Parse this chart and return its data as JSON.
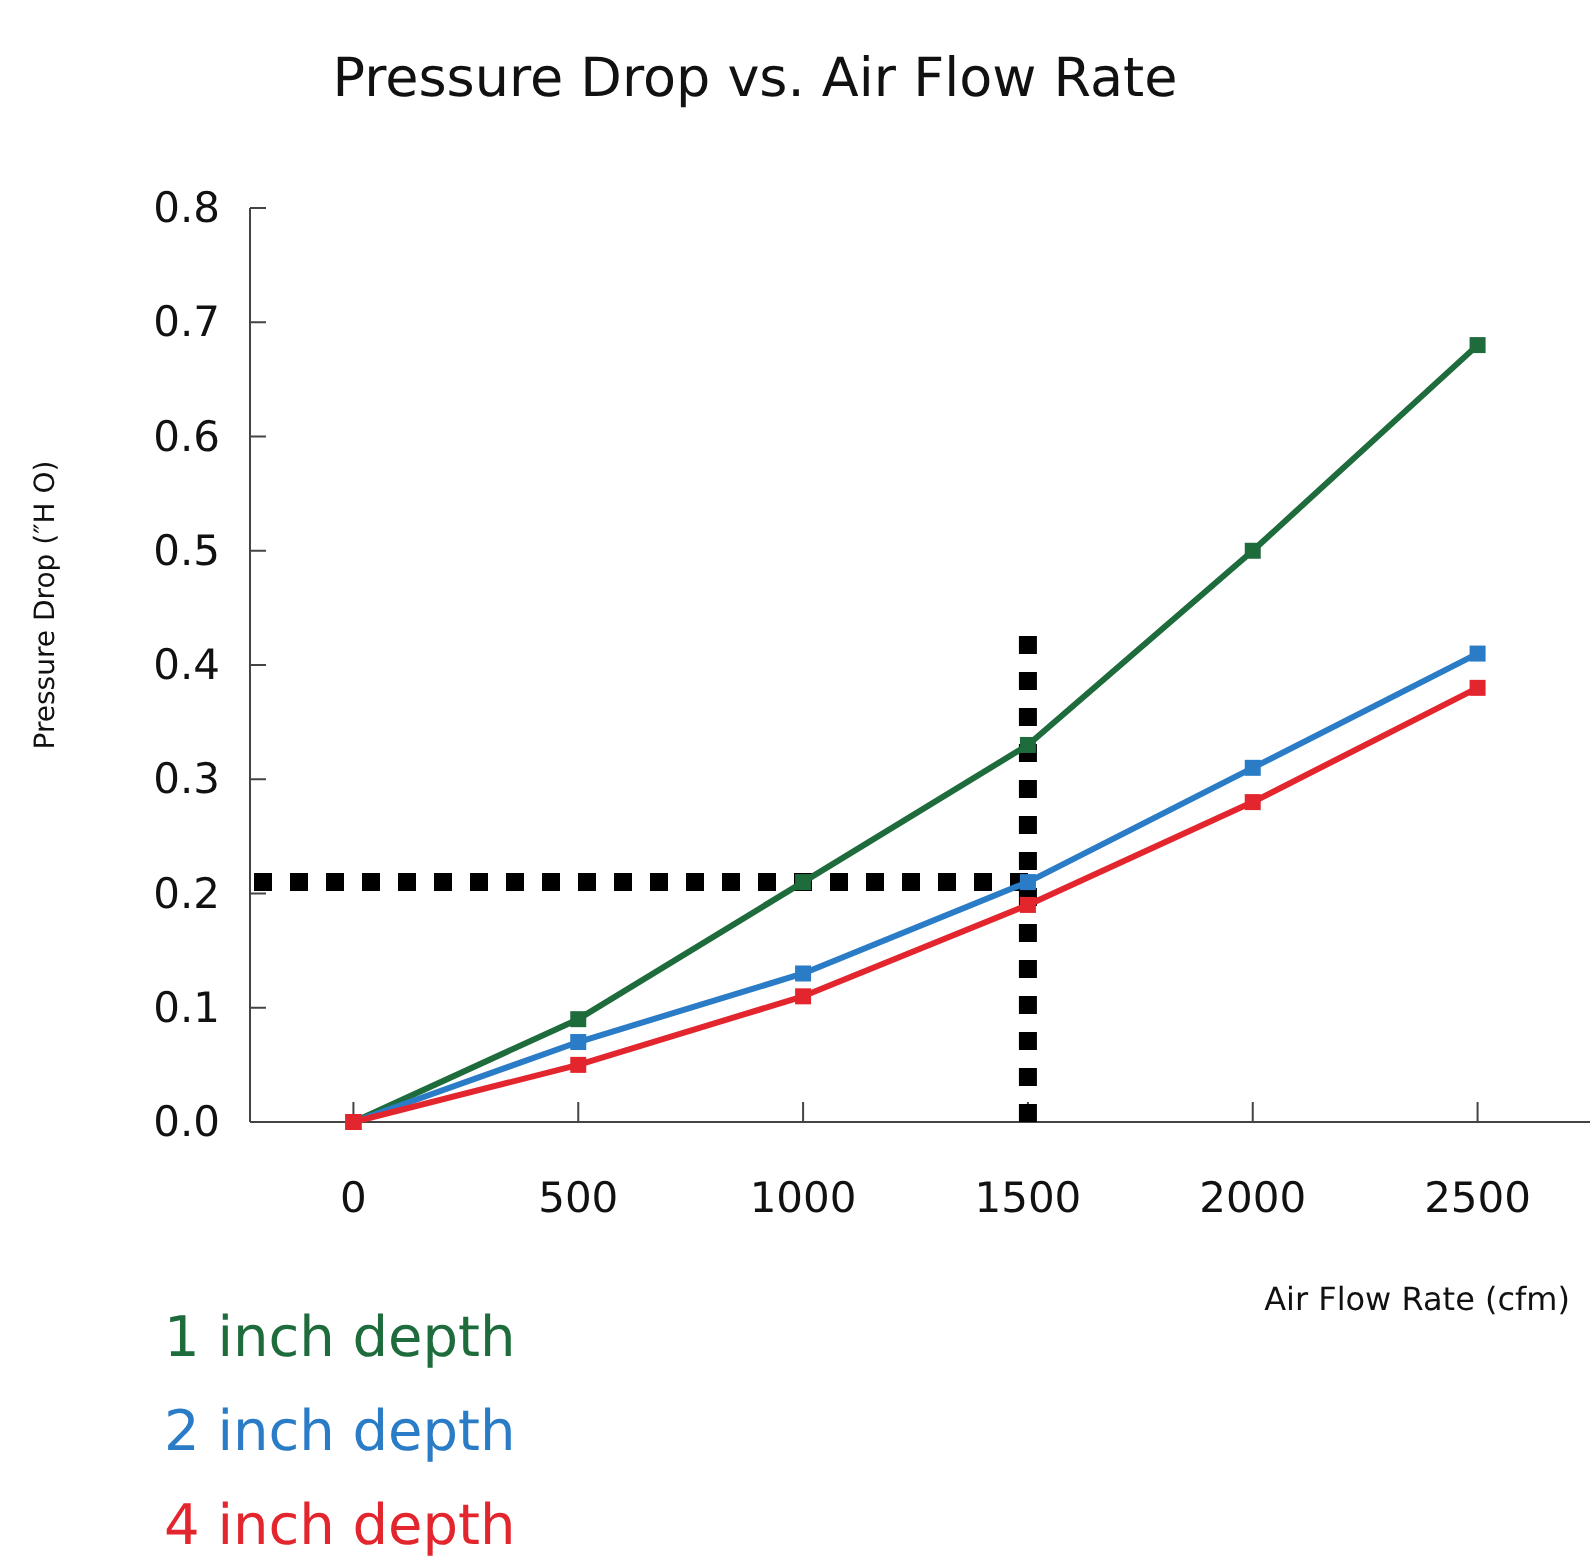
{
  "chart_data": {
    "type": "line",
    "title": "Pressure Drop vs. Air Flow Rate",
    "xlabel": "Air Flow Rate (cfm)",
    "ylabel": "Pressure Drop (″H O)",
    "x": [
      0,
      500,
      1000,
      1500,
      2000,
      2500
    ],
    "series": [
      {
        "name": "1 inch depth",
        "color": "#1e6b3c",
        "values": [
          0,
          0.09,
          0.21,
          0.33,
          0.5,
          0.68
        ]
      },
      {
        "name": "2 inch depth",
        "color": "#2a7cc7",
        "values": [
          0,
          0.07,
          0.13,
          0.21,
          0.31,
          0.41
        ]
      },
      {
        "name": "4 inch depth",
        "color": "#e3262e",
        "values": [
          0,
          0.05,
          0.11,
          0.19,
          0.28,
          0.38
        ]
      }
    ],
    "xlim": [
      -230,
      2750
    ],
    "xticks": [
      0,
      500,
      1000,
      1500,
      2000,
      2500
    ],
    "ylim": [
      0,
      0.8
    ],
    "yticks": [
      {
        "value": 0,
        "label": "0.0"
      },
      0.1,
      0.2,
      0.3,
      0.4,
      0.5,
      0.6,
      0.7,
      0.8
    ],
    "ref_lines": [
      {
        "axis": "y",
        "value": 0.21,
        "color": "#000000",
        "line_style": "dotted"
      },
      {
        "axis": "x",
        "value": 1500,
        "color": "#000000",
        "line_style": "dotted"
      }
    ],
    "marker": "square",
    "line_style": "solid",
    "grid": false,
    "legend": "bottom left"
  }
}
